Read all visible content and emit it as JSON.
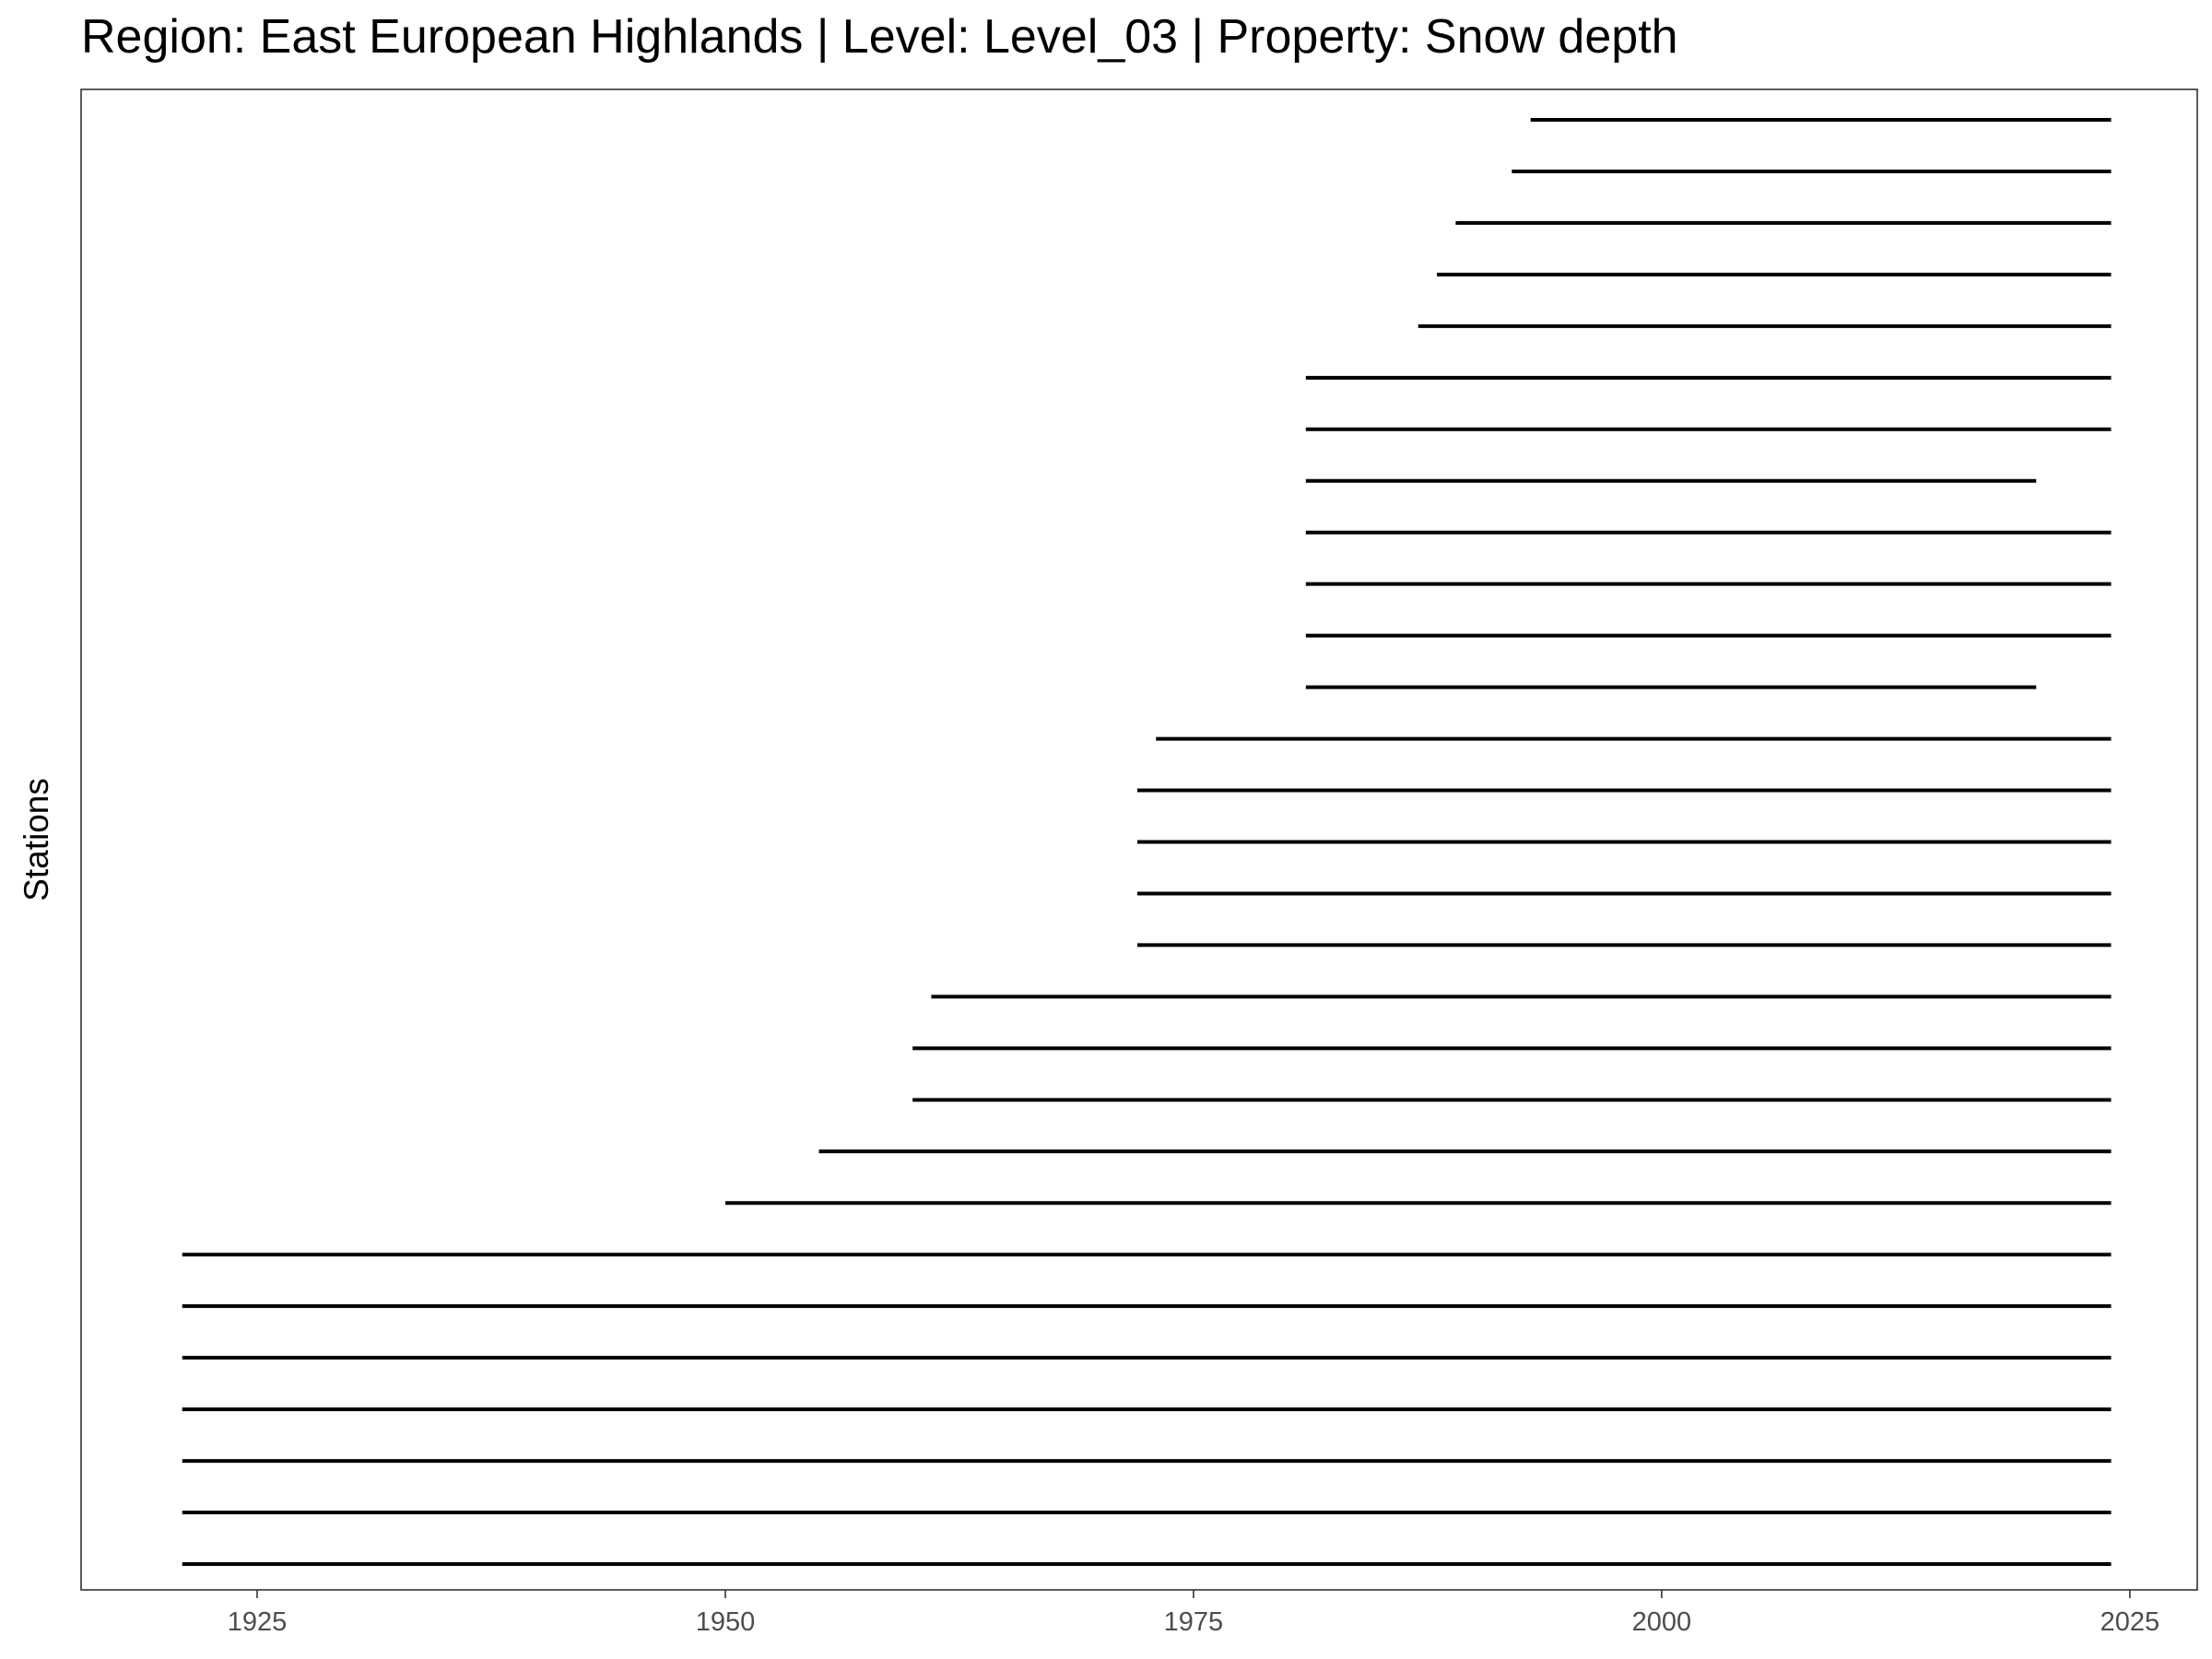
{
  "chart_data": {
    "type": "timeline",
    "title": "Region: East European Highlands | Level: Level_03 | Property: Snow depth",
    "xlabel": "",
    "ylabel": "Stations",
    "xlim": [
      1915.6,
      2028.6
    ],
    "x_ticks": [
      1925,
      1950,
      1975,
      2000,
      2025
    ],
    "grid": false,
    "legend": "none",
    "colors": {
      "segment": "#000000",
      "frame": "#333333",
      "tick_text": "#4d4d4d",
      "background": "#ffffff"
    },
    "segments": [
      {
        "start": 1921,
        "end": 2024
      },
      {
        "start": 1921,
        "end": 2024
      },
      {
        "start": 1921,
        "end": 2024
      },
      {
        "start": 1921,
        "end": 2024
      },
      {
        "start": 1921,
        "end": 2024
      },
      {
        "start": 1921,
        "end": 2024
      },
      {
        "start": 1921,
        "end": 2024
      },
      {
        "start": 1950,
        "end": 2024
      },
      {
        "start": 1955,
        "end": 2024
      },
      {
        "start": 1960,
        "end": 2024
      },
      {
        "start": 1960,
        "end": 2024
      },
      {
        "start": 1961,
        "end": 2024
      },
      {
        "start": 1972,
        "end": 2024
      },
      {
        "start": 1972,
        "end": 2024
      },
      {
        "start": 1972,
        "end": 2024
      },
      {
        "start": 1972,
        "end": 2024
      },
      {
        "start": 1973,
        "end": 2024
      },
      {
        "start": 1981,
        "end": 2020
      },
      {
        "start": 1981,
        "end": 2024
      },
      {
        "start": 1981,
        "end": 2024
      },
      {
        "start": 1981,
        "end": 2024
      },
      {
        "start": 1981,
        "end": 2020
      },
      {
        "start": 1981,
        "end": 2024
      },
      {
        "start": 1981,
        "end": 2024
      },
      {
        "start": 1987,
        "end": 2024
      },
      {
        "start": 1988,
        "end": 2024
      },
      {
        "start": 1989,
        "end": 2024
      },
      {
        "start": 1992,
        "end": 2024
      },
      {
        "start": 1993,
        "end": 2024
      }
    ]
  }
}
